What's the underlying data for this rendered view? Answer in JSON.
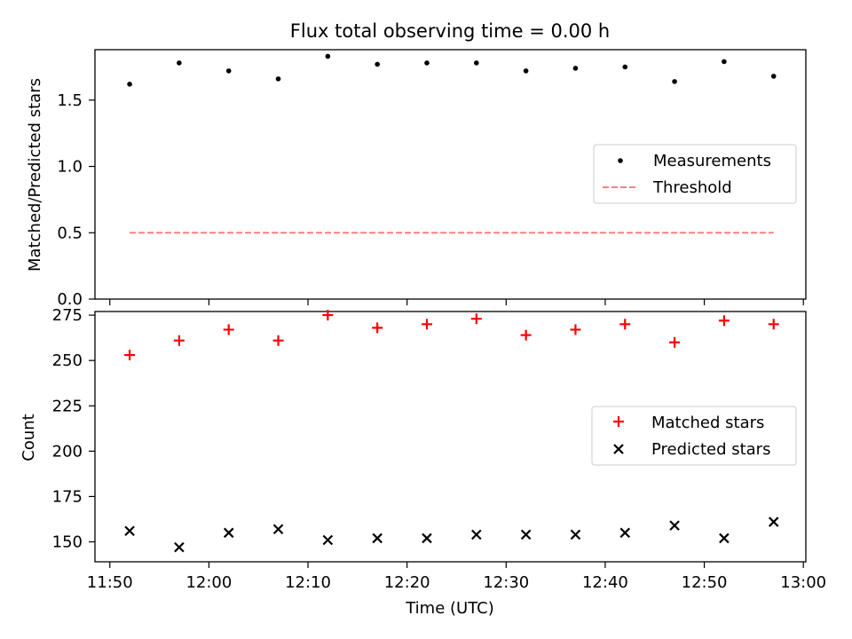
{
  "title": "Flux total observing time = 0.00 h",
  "colors": {
    "measurement": "#000000",
    "threshold": "#ff7f7f",
    "matched": "#ff0000",
    "predicted": "#000000"
  },
  "chart_data": [
    {
      "type": "scatter",
      "panel": "top",
      "title": "Flux total observing time = 0.00 h",
      "xlabel": "",
      "ylabel": "Matched/Predicted stars",
      "x": [
        "11:52",
        "11:57",
        "12:02",
        "12:07",
        "12:12",
        "12:17",
        "12:22",
        "12:27",
        "12:32",
        "12:37",
        "12:42",
        "12:47",
        "12:52",
        "12:57"
      ],
      "ylim": [
        0,
        1.88
      ],
      "yticks": [
        0.0,
        0.5,
        1.0,
        1.5
      ],
      "ytick_labels": [
        "0.0",
        "0.5",
        "1.0",
        "1.5"
      ],
      "grid": false,
      "legend_position": "center-right",
      "series": [
        {
          "name": "Measurements",
          "marker": "dot",
          "values": [
            1.62,
            1.78,
            1.72,
            1.66,
            1.83,
            1.77,
            1.78,
            1.78,
            1.72,
            1.74,
            1.75,
            1.64,
            1.79,
            1.68
          ]
        },
        {
          "name": "Threshold",
          "marker": "dashed-line",
          "values": [
            0.5,
            0.5,
            0.5,
            0.5,
            0.5,
            0.5,
            0.5,
            0.5,
            0.5,
            0.5,
            0.5,
            0.5,
            0.5,
            0.5
          ]
        }
      ]
    },
    {
      "type": "scatter",
      "panel": "bottom",
      "xlabel": "Time (UTC)",
      "ylabel": "Count",
      "x": [
        "11:52",
        "11:57",
        "12:02",
        "12:07",
        "12:12",
        "12:17",
        "12:22",
        "12:27",
        "12:32",
        "12:37",
        "12:42",
        "12:47",
        "12:52",
        "12:57"
      ],
      "xlim": [
        "11:50",
        "13:00"
      ],
      "xticks": [
        "11:50",
        "12:00",
        "12:10",
        "12:20",
        "12:30",
        "12:40",
        "12:50",
        "13:00"
      ],
      "ylim": [
        139,
        277
      ],
      "yticks": [
        150,
        175,
        200,
        225,
        250,
        275
      ],
      "ytick_labels": [
        "150",
        "175",
        "200",
        "225",
        "250",
        "275"
      ],
      "grid": false,
      "legend_position": "center-right",
      "series": [
        {
          "name": "Matched stars",
          "marker": "plus",
          "values": [
            253,
            261,
            267,
            261,
            275,
            268,
            270,
            273,
            264,
            267,
            270,
            260,
            272,
            270
          ]
        },
        {
          "name": "Predicted stars",
          "marker": "x",
          "values": [
            156,
            147,
            155,
            157,
            151,
            152,
            152,
            154,
            154,
            154,
            155,
            159,
            152,
            161
          ]
        }
      ]
    }
  ]
}
